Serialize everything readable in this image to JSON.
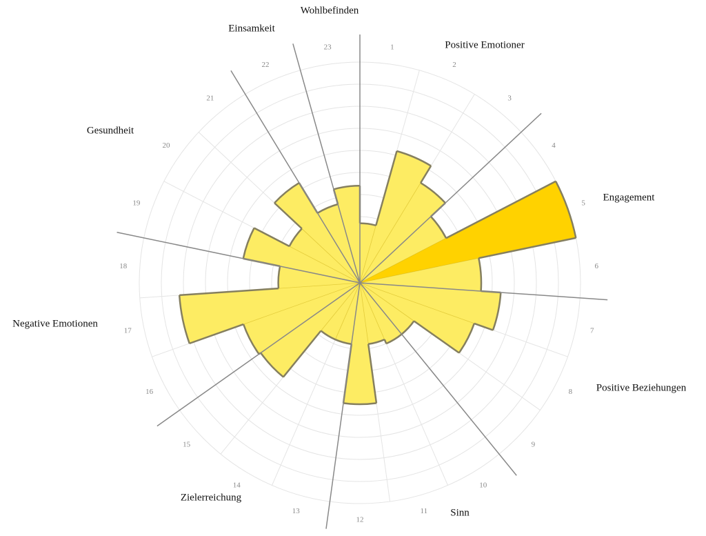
{
  "chart_data": {
    "type": "polar_area",
    "categories": [
      "1",
      "2",
      "3",
      "4",
      "5",
      "6",
      "7",
      "8",
      "9",
      "10",
      "11",
      "12",
      "13",
      "14",
      "15",
      "16",
      "17",
      "18",
      "19",
      "20",
      "21",
      "22",
      "23"
    ],
    "values": [
      2.7,
      6.2,
      5.3,
      4.4,
      10,
      5.5,
      6.4,
      5.5,
      3,
      3,
      2.8,
      5.5,
      2.8,
      2.8,
      5.5,
      5.6,
      8.2,
      3.7,
      5.4,
      3.6,
      5.3,
      3.7,
      4.4
    ],
    "color": "#fdec63",
    "highlight_color": "#ffd200",
    "highlight_index": 4,
    "ylim": [
      0,
      10
    ],
    "yticks": [
      1,
      2,
      3,
      4,
      5,
      6,
      7,
      8,
      9,
      10
    ],
    "grid": true,
    "groups": [
      "Positive Emotioner",
      "Engagement",
      "Positive Beziehungen",
      "Sinn",
      "Zielerreichung",
      "Negative Emotionen",
      "Gesundheit",
      "Einsamkeit",
      "Wohlbefinden"
    ]
  }
}
